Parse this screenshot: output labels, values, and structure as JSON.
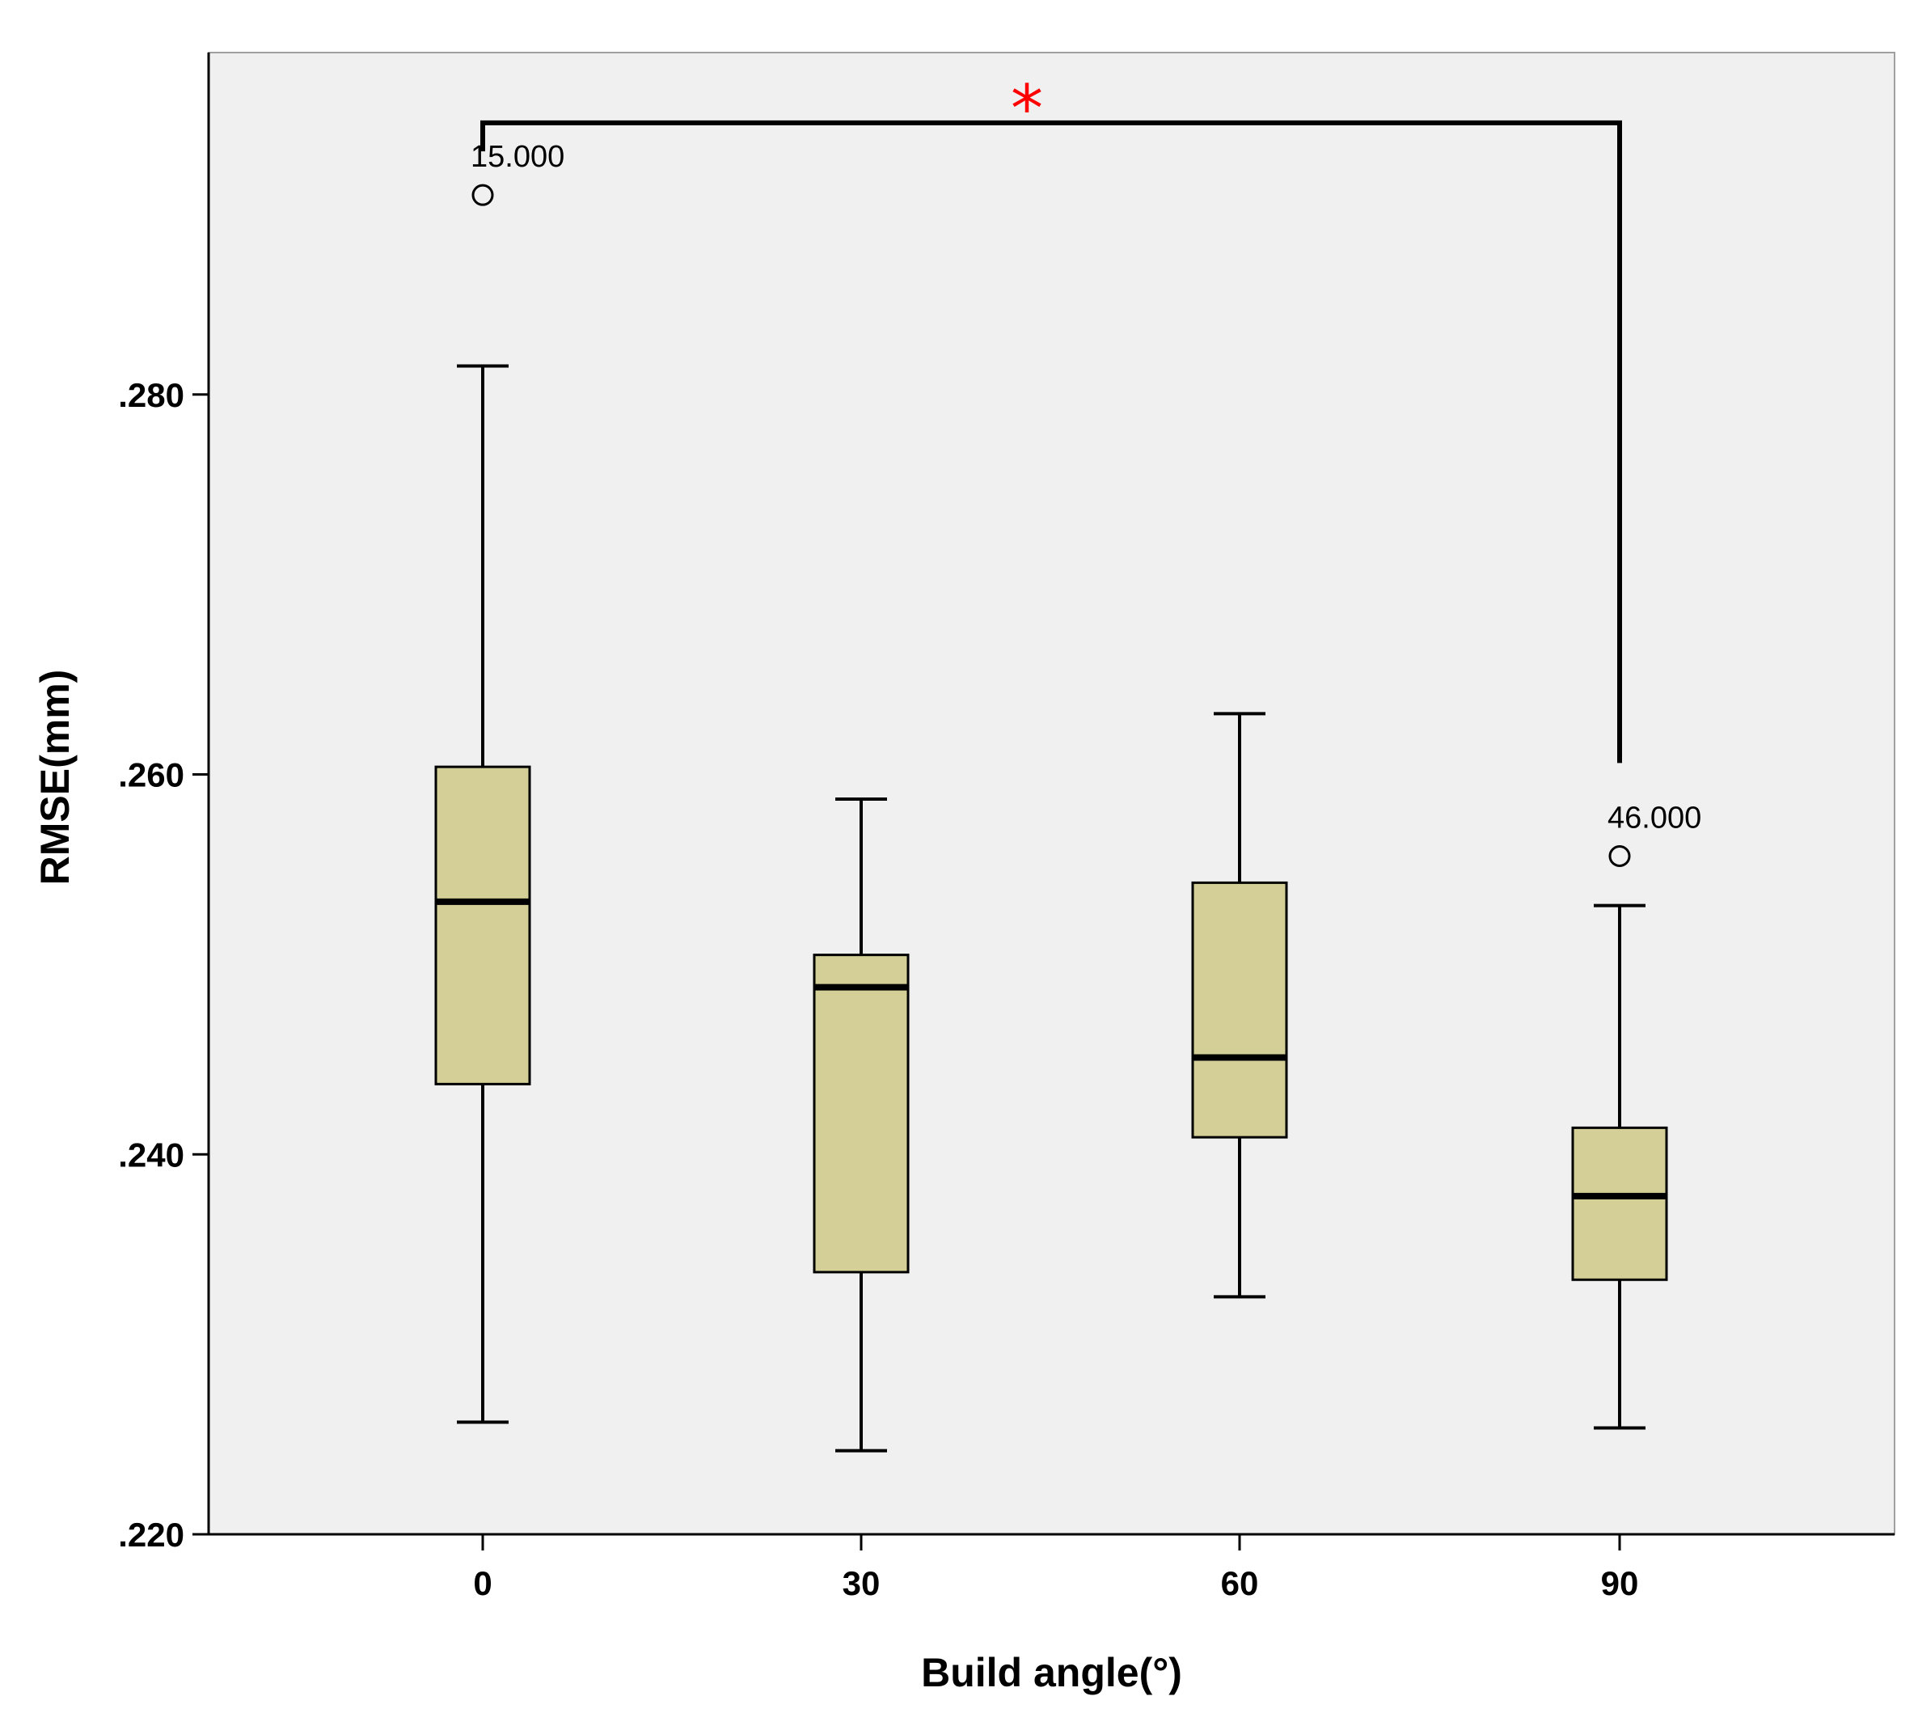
{
  "chart_data": {
    "type": "box",
    "xlabel": "Build angle(°)",
    "ylabel": "RMSE(mm)",
    "ylim": [
      0.22,
      0.298
    ],
    "y_ticks": [
      {
        "value": 0.22,
        "label": ".220"
      },
      {
        "value": 0.24,
        "label": ".240"
      },
      {
        "value": 0.26,
        "label": ".260"
      },
      {
        "value": 0.28,
        "label": ".280"
      }
    ],
    "categories": [
      "0",
      "30",
      "60",
      "90"
    ],
    "boxes": [
      {
        "category": "0",
        "whisker_low": 0.2259,
        "q1": 0.2437,
        "median": 0.2533,
        "q3": 0.2604,
        "whisker_high": 0.2815
      },
      {
        "category": "30",
        "whisker_low": 0.2244,
        "q1": 0.2338,
        "median": 0.2488,
        "q3": 0.2505,
        "whisker_high": 0.2587
      },
      {
        "category": "60",
        "whisker_low": 0.2325,
        "q1": 0.2409,
        "median": 0.2451,
        "q3": 0.2543,
        "whisker_high": 0.2632
      },
      {
        "category": "90",
        "whisker_low": 0.2256,
        "q1": 0.2334,
        "median": 0.2378,
        "q3": 0.2414,
        "whisker_high": 0.2531
      }
    ],
    "outliers": [
      {
        "category": "0",
        "value": 0.2905,
        "label": "15.000"
      },
      {
        "category": "90",
        "value": 0.2557,
        "label": "46.000"
      }
    ],
    "significance": {
      "from": "0",
      "to": "90",
      "bracket_y": 0.2943,
      "end_left_y": 0.2928,
      "end_right_y": 0.2606,
      "marker": "*",
      "marker_color": "#ff0000"
    },
    "colors": {
      "plot_background": "#f0f0f0",
      "box_fill": "#d3cf97",
      "box_stroke": "#000000"
    },
    "grid": false,
    "legend": "none"
  }
}
